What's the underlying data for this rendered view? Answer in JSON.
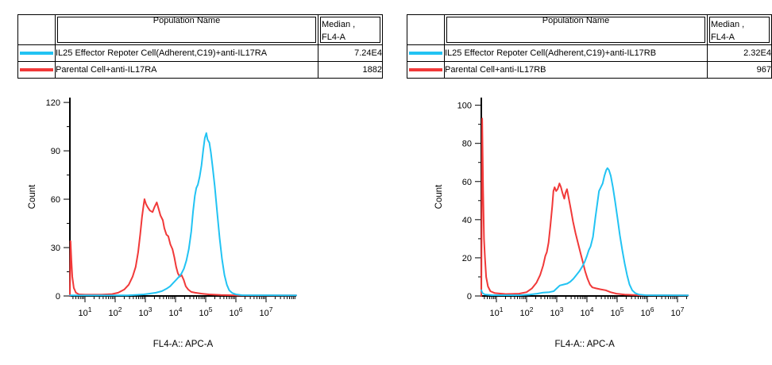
{
  "tables": [
    {
      "header": {
        "population": "Population Name",
        "median_line1": "Median ,",
        "median_line2": "FL4-A"
      },
      "rows": [
        {
          "color": "#22c3f3",
          "population": "IL25 Effector Repoter Cell(Adherent,C19)+anti-IL17RA",
          "median": "7.24E4"
        },
        {
          "color": "#f13939",
          "population": "Parental Cell+anti-IL17RA",
          "median": "1882"
        }
      ]
    },
    {
      "header": {
        "population": "Population Name",
        "median_line1": "Median ,",
        "median_line2": "FL4-A"
      },
      "rows": [
        {
          "color": "#22c3f3",
          "population": "IL25 Effector Repoter Cell(Adherent,C19)+anti-IL17RB",
          "median": "2.32E4"
        },
        {
          "color": "#f13939",
          "population": "Parental Cell+anti-IL17RB",
          "median": "967"
        }
      ]
    }
  ],
  "chart_data": [
    {
      "type": "line",
      "title": "",
      "xlabel": "FL4-A:: APC-A",
      "ylabel": "Count",
      "x_scale": "log10",
      "xlim_log": [
        0.5,
        8.0
      ],
      "x_tick_base": "10",
      "x_tick_exponents": [
        1,
        2,
        3,
        4,
        5,
        6,
        7
      ],
      "ylim": [
        0,
        123
      ],
      "y_major_ticks": [
        0,
        30,
        60,
        90,
        120
      ],
      "y_minor_step": 15,
      "grid": false,
      "legend": "none (series identified by color in table above)",
      "series": [
        {
          "name": "Parental Cell+anti-IL17RA",
          "color": "#f13939",
          "points": [
            [
              0.5,
              0
            ],
            [
              0.52,
              34
            ],
            [
              0.55,
              22
            ],
            [
              0.58,
              12
            ],
            [
              0.63,
              5
            ],
            [
              0.7,
              2
            ],
            [
              0.8,
              1
            ],
            [
              1.0,
              0.8
            ],
            [
              1.5,
              0.8
            ],
            [
              1.9,
              1.2
            ],
            [
              2.1,
              2
            ],
            [
              2.3,
              4
            ],
            [
              2.45,
              7
            ],
            [
              2.58,
              12
            ],
            [
              2.68,
              18
            ],
            [
              2.76,
              27
            ],
            [
              2.83,
              38
            ],
            [
              2.89,
              49
            ],
            [
              2.94,
              56
            ],
            [
              2.97,
              60
            ],
            [
              3.02,
              57
            ],
            [
              3.08,
              55
            ],
            [
              3.15,
              53
            ],
            [
              3.24,
              52
            ],
            [
              3.3,
              55
            ],
            [
              3.38,
              58
            ],
            [
              3.44,
              54
            ],
            [
              3.5,
              50
            ],
            [
              3.58,
              47
            ],
            [
              3.63,
              42
            ],
            [
              3.7,
              38
            ],
            [
              3.76,
              37
            ],
            [
              3.83,
              32
            ],
            [
              3.9,
              29
            ],
            [
              3.96,
              24
            ],
            [
              4.02,
              18
            ],
            [
              4.08,
              14
            ],
            [
              4.14,
              12
            ],
            [
              4.2,
              13
            ],
            [
              4.27,
              10
            ],
            [
              4.34,
              6
            ],
            [
              4.42,
              4
            ],
            [
              4.52,
              2.5
            ],
            [
              4.65,
              2
            ],
            [
              4.85,
              1.5
            ],
            [
              5.1,
              1
            ],
            [
              5.5,
              0.6
            ],
            [
              6.0,
              0.4
            ],
            [
              8.0,
              0.4
            ]
          ]
        },
        {
          "name": "IL25 Effector Repoter Cell(Adherent,C19)+anti-IL17RA",
          "color": "#22c3f3",
          "points": [
            [
              0.5,
              0.4
            ],
            [
              2.4,
              0.4
            ],
            [
              2.7,
              0.7
            ],
            [
              2.95,
              1
            ],
            [
              3.15,
              1.5
            ],
            [
              3.35,
              2
            ],
            [
              3.55,
              3
            ],
            [
              3.7,
              4.5
            ],
            [
              3.82,
              6
            ],
            [
              3.92,
              8
            ],
            [
              4.02,
              10
            ],
            [
              4.12,
              12
            ],
            [
              4.2,
              14
            ],
            [
              4.28,
              17
            ],
            [
              4.36,
              22
            ],
            [
              4.44,
              29
            ],
            [
              4.52,
              40
            ],
            [
              4.58,
              52
            ],
            [
              4.64,
              62
            ],
            [
              4.69,
              67
            ],
            [
              4.74,
              69
            ],
            [
              4.8,
              74
            ],
            [
              4.86,
              81
            ],
            [
              4.92,
              91
            ],
            [
              4.97,
              98
            ],
            [
              5.02,
              101
            ],
            [
              5.06,
              97
            ],
            [
              5.12,
              95
            ],
            [
              5.17,
              89
            ],
            [
              5.23,
              80
            ],
            [
              5.3,
              68
            ],
            [
              5.38,
              52
            ],
            [
              5.46,
              36
            ],
            [
              5.54,
              23
            ],
            [
              5.62,
              13
            ],
            [
              5.7,
              7
            ],
            [
              5.78,
              3.5
            ],
            [
              5.88,
              1.8
            ],
            [
              6.0,
              1
            ],
            [
              6.2,
              0.5
            ],
            [
              8.0,
              0.4
            ]
          ]
        }
      ]
    },
    {
      "type": "line",
      "title": "",
      "xlabel": "FL4-A:: APC-A",
      "ylabel": "Count",
      "x_scale": "log10",
      "xlim_log": [
        0.5,
        7.35
      ],
      "x_tick_base": "10",
      "x_tick_exponents": [
        1,
        2,
        3,
        4,
        5,
        6,
        7
      ],
      "ylim": [
        0,
        104
      ],
      "y_major_ticks": [
        0,
        20,
        40,
        60,
        80,
        100
      ],
      "y_minor_step": 10,
      "grid": false,
      "legend": "none (series identified by color in table above)",
      "series": [
        {
          "name": "Parental Cell+anti-IL17RB",
          "color": "#f13939",
          "points": [
            [
              0.5,
              0
            ],
            [
              0.53,
              93
            ],
            [
              0.56,
              55
            ],
            [
              0.59,
              30
            ],
            [
              0.62,
              20
            ],
            [
              0.66,
              10
            ],
            [
              0.72,
              5
            ],
            [
              0.8,
              2.5
            ],
            [
              0.95,
              1.5
            ],
            [
              1.3,
              1
            ],
            [
              1.75,
              1.2
            ],
            [
              2.0,
              2
            ],
            [
              2.18,
              4
            ],
            [
              2.33,
              7
            ],
            [
              2.45,
              11
            ],
            [
              2.55,
              16
            ],
            [
              2.62,
              21
            ],
            [
              2.67,
              23
            ],
            [
              2.73,
              28
            ],
            [
              2.79,
              37
            ],
            [
              2.85,
              47
            ],
            [
              2.89,
              55
            ],
            [
              2.93,
              57
            ],
            [
              2.98,
              55
            ],
            [
              3.03,
              56
            ],
            [
              3.09,
              59
            ],
            [
              3.14,
              57
            ],
            [
              3.19,
              54
            ],
            [
              3.25,
              51
            ],
            [
              3.29,
              54
            ],
            [
              3.34,
              56
            ],
            [
              3.4,
              51
            ],
            [
              3.47,
              45
            ],
            [
              3.54,
              39
            ],
            [
              3.62,
              33
            ],
            [
              3.7,
              28
            ],
            [
              3.78,
              23
            ],
            [
              3.86,
              18
            ],
            [
              3.94,
              13
            ],
            [
              4.02,
              9
            ],
            [
              4.1,
              6
            ],
            [
              4.18,
              4.5
            ],
            [
              4.3,
              4
            ],
            [
              4.45,
              3.5
            ],
            [
              4.62,
              3
            ],
            [
              4.78,
              2
            ],
            [
              4.98,
              1.2
            ],
            [
              5.25,
              0.7
            ],
            [
              5.7,
              0.4
            ],
            [
              7.35,
              0.3
            ]
          ]
        },
        {
          "name": "IL25 Effector Repoter Cell(Adherent,C19)+anti-IL17RB",
          "color": "#22c3f3",
          "points": [
            [
              0.5,
              3
            ],
            [
              0.54,
              1.5
            ],
            [
              0.62,
              0.8
            ],
            [
              0.85,
              0.4
            ],
            [
              1.8,
              0.4
            ],
            [
              2.1,
              0.7
            ],
            [
              2.35,
              1.2
            ],
            [
              2.55,
              1.8
            ],
            [
              2.75,
              2
            ],
            [
              2.9,
              2.5
            ],
            [
              3.0,
              4
            ],
            [
              3.1,
              5.5
            ],
            [
              3.22,
              6
            ],
            [
              3.35,
              6.5
            ],
            [
              3.45,
              7.5
            ],
            [
              3.55,
              9
            ],
            [
              3.65,
              11
            ],
            [
              3.75,
              13
            ],
            [
              3.85,
              15.5
            ],
            [
              3.93,
              18
            ],
            [
              4.0,
              21
            ],
            [
              4.06,
              24
            ],
            [
              4.12,
              26
            ],
            [
              4.2,
              31
            ],
            [
              4.28,
              41
            ],
            [
              4.34,
              48
            ],
            [
              4.4,
              55
            ],
            [
              4.46,
              57
            ],
            [
              4.52,
              59
            ],
            [
              4.58,
              63
            ],
            [
              4.64,
              66
            ],
            [
              4.68,
              67
            ],
            [
              4.73,
              66
            ],
            [
              4.79,
              63
            ],
            [
              4.86,
              57
            ],
            [
              4.93,
              50
            ],
            [
              5.01,
              41
            ],
            [
              5.09,
              32
            ],
            [
              5.17,
              24
            ],
            [
              5.25,
              17
            ],
            [
              5.33,
              11
            ],
            [
              5.41,
              6
            ],
            [
              5.5,
              3
            ],
            [
              5.6,
              1.5
            ],
            [
              5.73,
              0.7
            ],
            [
              5.95,
              0.4
            ],
            [
              7.35,
              0.3
            ]
          ]
        }
      ]
    }
  ]
}
